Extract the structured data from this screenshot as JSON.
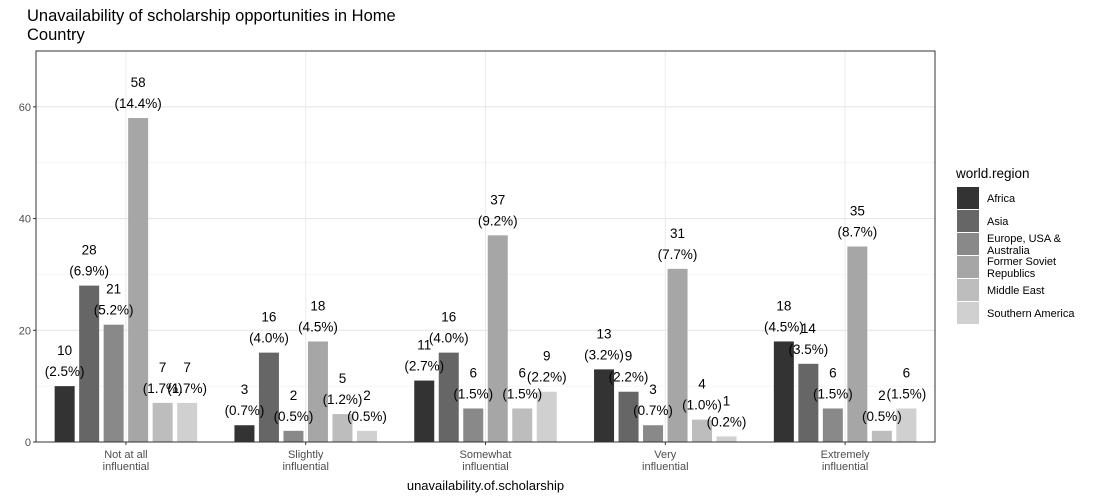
{
  "chart_data": {
    "type": "bar",
    "title": "Unavailability of scholarship opportunities in Home Country",
    "xlabel": "unavailability.of.scholarship",
    "ylabel": "",
    "ylim": [
      0,
      70
    ],
    "yticks": [
      0,
      20,
      40,
      60
    ],
    "grid": true,
    "legend_position": "right",
    "legend_title": "world.region",
    "categories": [
      "Not at all\ninfluential",
      "Slightly\ninfluential",
      "Somewhat\ninfluential",
      "Very\ninfluential",
      "Extremely\ninfluential"
    ],
    "series": [
      {
        "name": "Africa",
        "color": "#333333",
        "values": [
          10,
          3,
          11,
          13,
          18
        ],
        "labels": [
          "(2.5%)",
          "(0.7%)",
          "(2.7%)",
          "(3.2%)",
          "(4.5%)"
        ]
      },
      {
        "name": "Asia",
        "color": "#666666",
        "values": [
          28,
          16,
          16,
          9,
          14
        ],
        "labels": [
          "(6.9%)",
          "(4.0%)",
          "(4.0%)",
          "(2.2%)",
          "(3.5%)"
        ]
      },
      {
        "name": "Europe, USA &\nAustralia",
        "color": "#898989",
        "values": [
          21,
          2,
          6,
          3,
          6
        ],
        "labels": [
          "(5.2%)",
          "(0.5%)",
          "(1.5%)",
          "(0.7%)",
          "(1.5%)"
        ]
      },
      {
        "name": "Former Soviet\nRepublics",
        "color": "#a6a6a6",
        "values": [
          58,
          18,
          37,
          31,
          35
        ],
        "labels": [
          "(14.4%)",
          "(4.5%)",
          "(9.2%)",
          "(7.7%)",
          "(8.7%)"
        ]
      },
      {
        "name": "Middle East",
        "color": "#bdbdbd",
        "values": [
          7,
          5,
          6,
          4,
          2
        ],
        "labels": [
          "(1.7%)",
          "(1.2%)",
          "(1.5%)",
          "(1.0%)",
          "(0.5%)"
        ]
      },
      {
        "name": "Southern America",
        "color": "#d0d0d0",
        "values": [
          7,
          2,
          9,
          1,
          6
        ],
        "labels": [
          "(1.7%)",
          "(0.5%)",
          "(2.2%)",
          "(0.2%)",
          "(1.5%)"
        ]
      }
    ]
  }
}
